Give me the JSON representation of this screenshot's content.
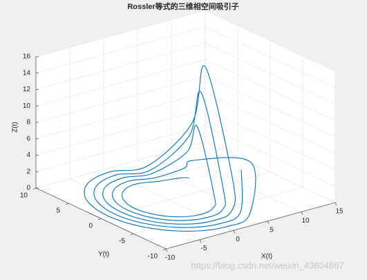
{
  "chart_data": {
    "type": "line3d",
    "title": "Rossler等式的三维相空间吸引子",
    "xlabel": "X(t)",
    "ylabel": "Y(t)",
    "zlabel": "Z(t)",
    "xlim": [
      -10,
      15
    ],
    "xticks": [
      -10,
      -5,
      0,
      5,
      10,
      15
    ],
    "ylim": [
      -10,
      10
    ],
    "yticks": [
      -10,
      -5,
      0,
      5,
      10
    ],
    "zlim": [
      0,
      16
    ],
    "zticks": [
      0,
      2,
      4,
      6,
      8,
      10,
      12,
      14,
      16
    ],
    "grid": true,
    "series": [
      {
        "color": "#0072bd",
        "x": [
          3,
          4.3,
          2.5,
          0,
          -2.5,
          -4.3,
          -5,
          -4.3,
          -2.5,
          0,
          2.5,
          4.3,
          4.2,
          6.1,
          3.5,
          0,
          -3.5,
          -6.1,
          -7,
          -6.1,
          -3.5,
          0,
          3.5,
          6.1,
          5.4,
          7.8,
          4.5,
          0,
          -4.5,
          -7.8,
          -9,
          -7.8,
          -4.5,
          0,
          4.5,
          7.8,
          3.6,
          5.2,
          3,
          0,
          -3,
          -5.2,
          -6,
          -5.2,
          -3,
          0,
          3,
          5.2,
          4.8,
          6.9,
          4,
          0,
          -4,
          -6.9,
          -8,
          -6.9,
          -4,
          0,
          4,
          6.9
        ],
        "y": [
          0,
          2.5,
          4.3,
          5,
          4.3,
          2.5,
          0,
          -2.5,
          -4.3,
          -5,
          -4.3,
          -2.5,
          0,
          3.5,
          6.1,
          7,
          6.1,
          3.5,
          0,
          -3.5,
          -6.1,
          -7,
          -6.1,
          -3.5,
          0,
          4.5,
          7.8,
          9,
          7.8,
          4.5,
          0,
          -4.5,
          -7.8,
          -9,
          -7.8,
          -4.5,
          0,
          3,
          5.2,
          6,
          5.2,
          3,
          0,
          -3,
          -5.2,
          -6,
          -5.2,
          -3,
          0,
          4,
          6.9,
          8,
          6.9,
          4,
          0,
          -4,
          -6.9,
          -8,
          -6.9,
          -4
        ],
        "z": [
          2,
          0.8,
          0.1,
          0.1,
          0.1,
          0.1,
          0.1,
          0.1,
          0.1,
          0.1,
          0.1,
          0.6,
          8,
          3.2,
          0.2,
          0.1,
          0.1,
          0.1,
          0.1,
          0.1,
          0.1,
          0.1,
          0.2,
          2.4,
          15,
          6,
          0.3,
          0.1,
          0.1,
          0.1,
          0.1,
          0.1,
          0.1,
          0.1,
          0.2,
          4.5,
          4,
          1.6,
          0.1,
          0.1,
          0.1,
          0.1,
          0.1,
          0.1,
          0.1,
          0.1,
          0.1,
          1.2,
          12,
          4.8,
          0.2,
          0.1,
          0.1,
          0.1,
          0.1,
          0.1,
          0.1,
          0.1,
          0.2,
          3.6
        ]
      }
    ]
  },
  "watermark": "https://blog.csdn.net/weixin_43604867"
}
